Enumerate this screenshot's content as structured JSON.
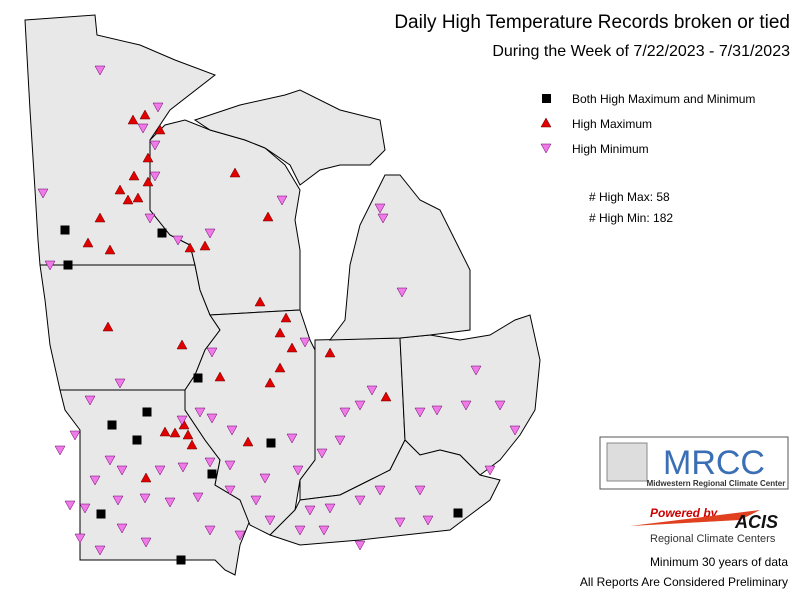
{
  "header": {
    "title": "Daily High Temperature Records broken or tied",
    "subtitle": "During the Week of 7/22/2023 - 7/31/2023"
  },
  "legend": {
    "items": [
      "Both High Maximum and Minimum",
      "High Maximum",
      "High Minimum"
    ]
  },
  "counts": [
    "# High Max: 58",
    "# High Min: 182"
  ],
  "logo": {
    "name": "MRCC",
    "full_name": "Midwestern Regional Climate Center",
    "powered": "Powered by",
    "acis": "ACIS",
    "rcc": "Regional Climate Centers"
  },
  "notes": [
    "Minimum 30 years of data",
    "All Reports Are Considered Preliminary"
  ]
}
